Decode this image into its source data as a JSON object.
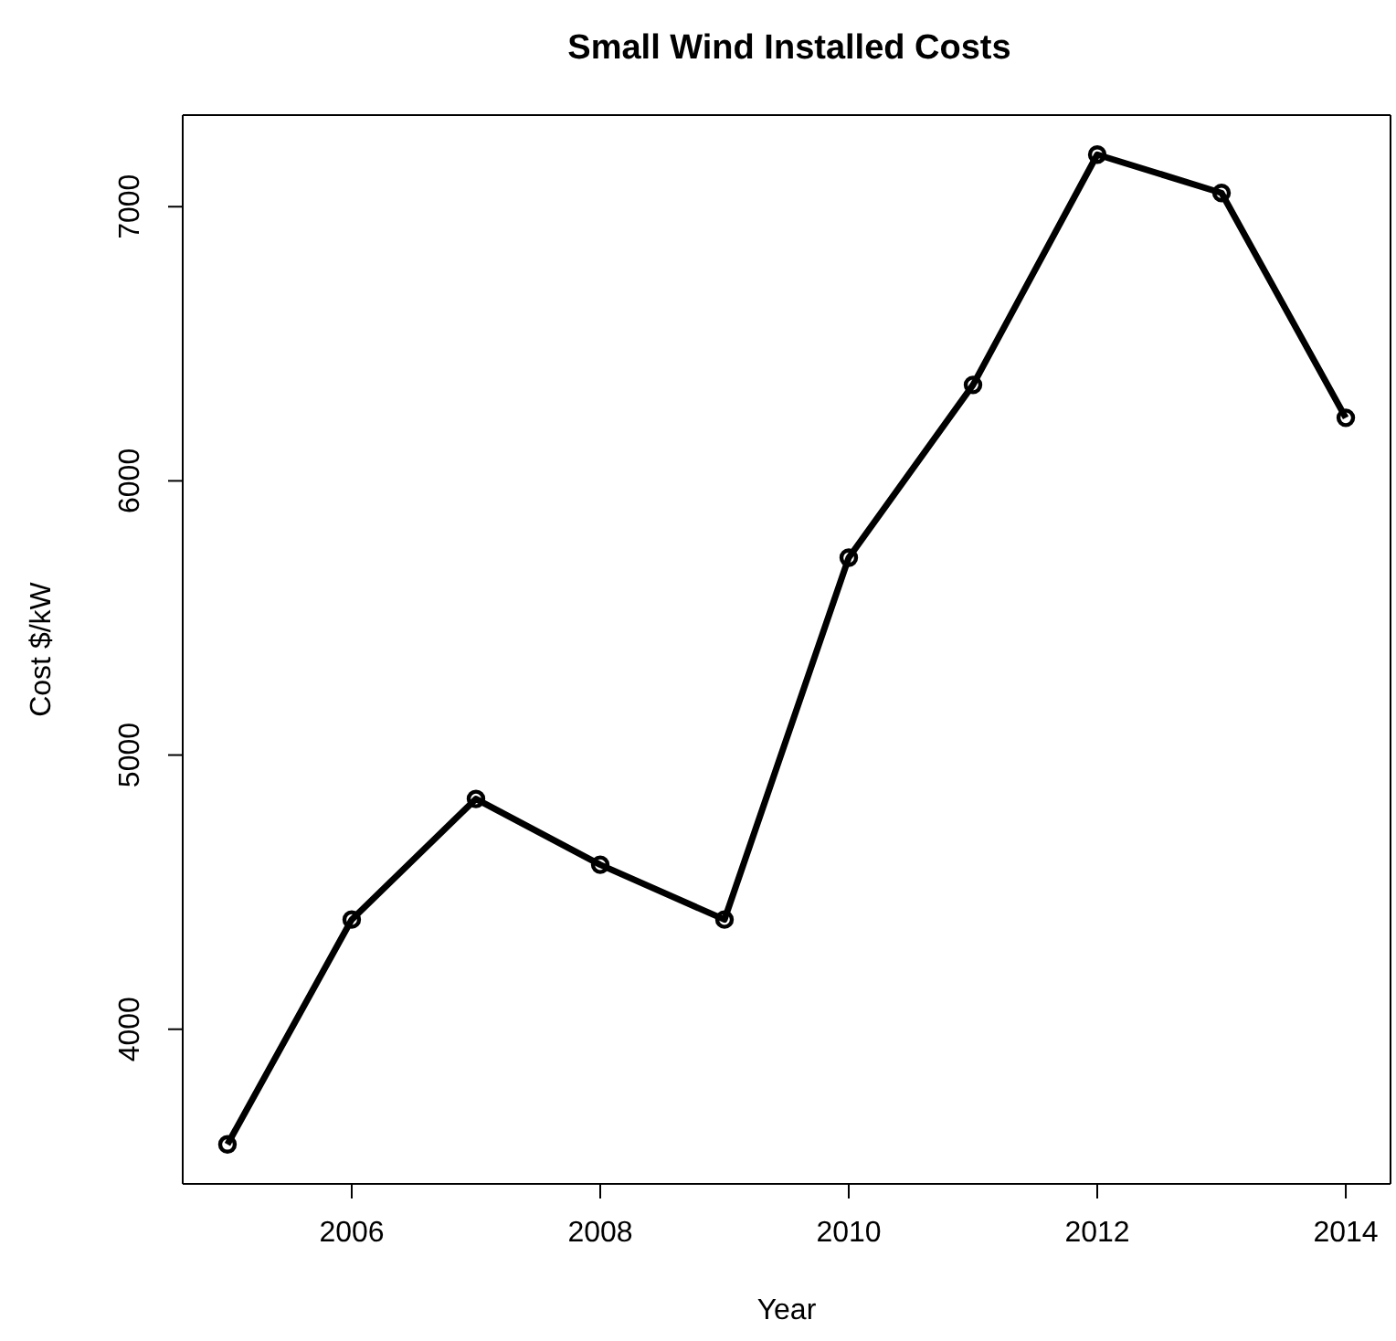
{
  "chart_data": {
    "type": "line",
    "title": "Small Wind Installed Costs",
    "xlabel": "Year",
    "ylabel": "Cost $/kW",
    "x": [
      2005,
      2006,
      2007,
      2008,
      2009,
      2010,
      2011,
      2012,
      2013,
      2014
    ],
    "series": [
      {
        "color": "#000000",
        "values": [
          3580,
          4400,
          4840,
          4600,
          4400,
          5720,
          6350,
          7190,
          7050,
          6230
        ]
      }
    ],
    "xlim": [
      2004.64,
      2014.36
    ],
    "xticks": [
      2006,
      2008,
      2010,
      2012,
      2014
    ],
    "ylim": [
      3436,
      7334
    ],
    "yticks": [
      4000,
      5000,
      6000,
      7000
    ],
    "marker": "circle",
    "line_style": "solid",
    "grid": false,
    "legend": false
  }
}
